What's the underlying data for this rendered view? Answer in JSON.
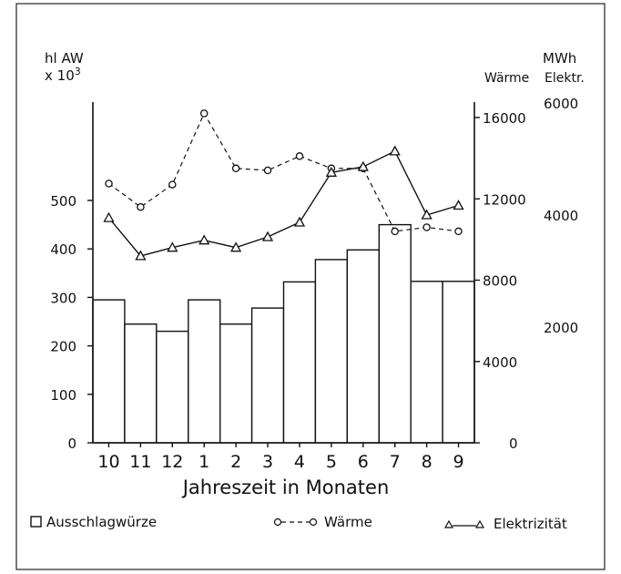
{
  "chart_data": {
    "type": "bar",
    "xlabel": "Jahreszeit in Monaten",
    "categories": [
      "10",
      "11",
      "12",
      "1",
      "2",
      "3",
      "4",
      "5",
      "6",
      "7",
      "8",
      "9"
    ],
    "left_axis": {
      "label_line1": "hl AW",
      "label_line2_base": "x 10",
      "label_line2_exp": "3",
      "ylim": [
        0,
        700
      ],
      "ticks": [
        "0",
        "100",
        "200",
        "300",
        "400",
        "500"
      ]
    },
    "right_axis_waerme": {
      "unit": "MWh",
      "label": "Wärme",
      "ylim": [
        0,
        16000
      ],
      "ticks": [
        "0",
        "4000",
        "8000",
        "12000",
        "16000"
      ]
    },
    "right_axis_elektr": {
      "label": "Elektr.",
      "ylim": [
        0,
        6000
      ],
      "ticks": [
        "2000",
        "4000",
        "6000"
      ]
    },
    "series": [
      {
        "name": "Ausschlagwürze",
        "kind": "bar",
        "axis": "left",
        "values": [
          295,
          245,
          230,
          295,
          245,
          278,
          332,
          378,
          398,
          450,
          333,
          333
        ]
      },
      {
        "name": "Wärme",
        "kind": "line-dashed-circle",
        "axis": "waerme",
        "values": [
          12750,
          11600,
          12700,
          16200,
          13500,
          13400,
          14100,
          13500,
          13500,
          10400,
          10600,
          10400
        ]
      },
      {
        "name": "Elektrizität",
        "kind": "line-solid-triangle",
        "axis": "elektr",
        "values": [
          3950,
          3270,
          3420,
          3550,
          3420,
          3610,
          3870,
          4760,
          4860,
          5140,
          4000,
          4170
        ]
      }
    ],
    "legend": [
      {
        "label": "Ausschlagwürze",
        "marker": "square"
      },
      {
        "label": "Wärme",
        "marker": "circle-dashed"
      },
      {
        "label": "Elektrizität",
        "marker": "triangle-solid"
      }
    ]
  }
}
